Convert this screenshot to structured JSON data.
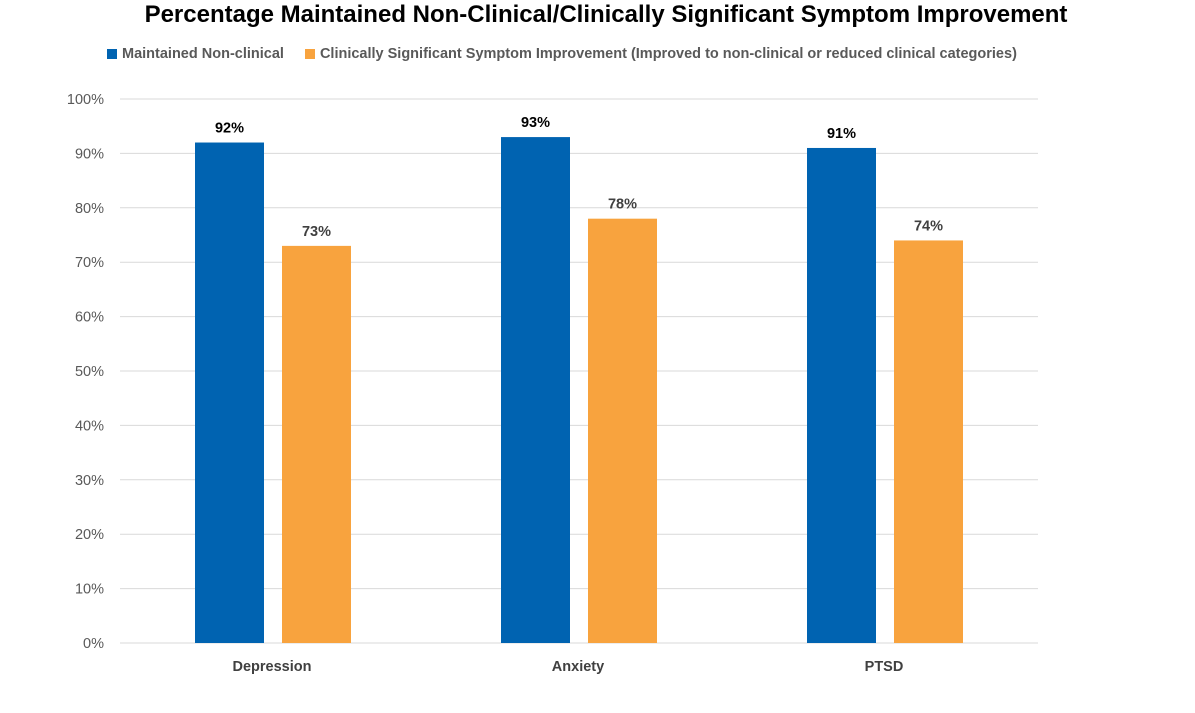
{
  "chart_data": {
    "type": "bar",
    "title": "Percentage Maintained Non-Clinical/Clinically Significant Symptom Improvement",
    "categories": [
      "Depression",
      "Anxiety",
      "PTSD"
    ],
    "series": [
      {
        "name": "Maintained Non-clinical",
        "color": "#0063B1",
        "values": [
          92,
          93,
          91
        ],
        "labels": [
          "92%",
          "93%",
          "91%"
        ]
      },
      {
        "name": "Clinically Significant Symptom Improvement (Improved to non-clinical or reduced clinical categories)",
        "color": "#F8A33E",
        "values": [
          73,
          78,
          74
        ],
        "labels": [
          "73%",
          "78%",
          "74%"
        ]
      }
    ],
    "ylim": [
      0,
      100
    ],
    "yticks": [
      0,
      10,
      20,
      30,
      40,
      50,
      60,
      70,
      80,
      90,
      100
    ],
    "ytick_labels": [
      "0%",
      "10%",
      "20%",
      "30%",
      "40%",
      "50%",
      "60%",
      "70%",
      "80%",
      "90%",
      "100%"
    ],
    "grid": true,
    "legend_position": "top-left",
    "gridline_color": "#D9D9D9"
  }
}
